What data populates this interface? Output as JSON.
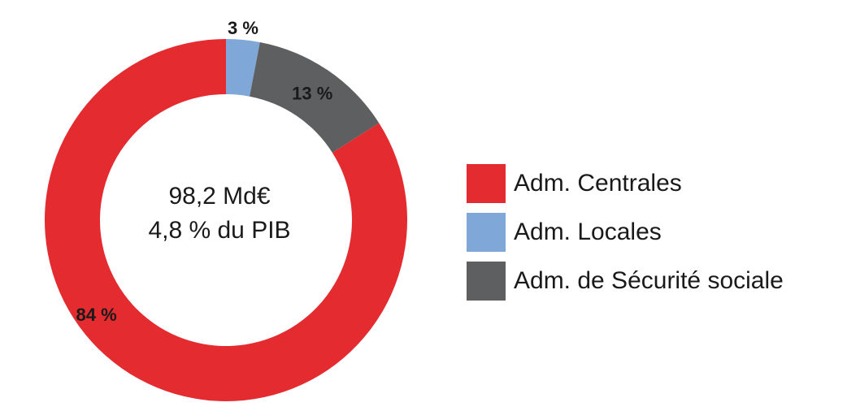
{
  "chart_data": {
    "type": "pie",
    "variant": "donut",
    "slices": [
      {
        "name": "Adm. Centrales",
        "value": 84,
        "label": "84 %",
        "color": "#e32b30"
      },
      {
        "name": "Adm. Locales",
        "value": 3,
        "label": "3 %",
        "color": "#7fa8d9"
      },
      {
        "name": "Adm. de Sécurité sociale",
        "value": 13,
        "label": "13 %",
        "color": "#5e5f61"
      }
    ],
    "center_text": [
      "98,2 Md€",
      "4,8 % du PIB"
    ],
    "legend": {
      "position": "right"
    }
  }
}
